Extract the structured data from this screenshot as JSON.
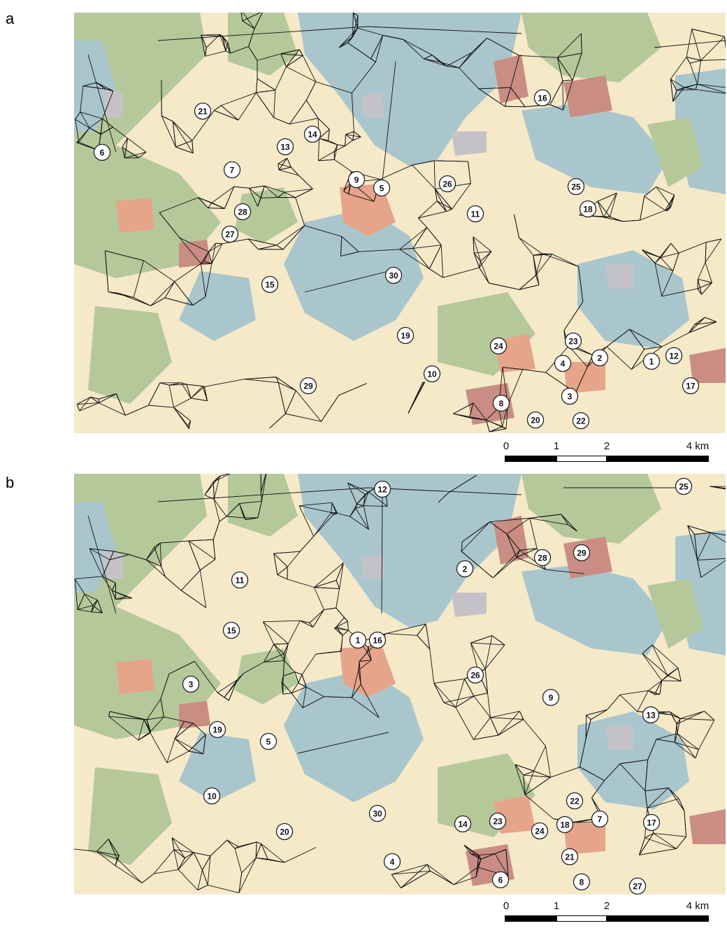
{
  "colors": {
    "background": "#f5e9c8",
    "water": "#a9c6cc",
    "forest": "#b5c89a",
    "urban_light": "#e6a48a",
    "urban_dark": "#c98d83",
    "grey": "#c4c2c8",
    "edge": "#111111"
  },
  "panels": [
    {
      "label": "a",
      "nodes": [
        {
          "id": "6"
        },
        {
          "id": "21"
        },
        {
          "id": "13"
        },
        {
          "id": "14"
        },
        {
          "id": "7"
        },
        {
          "id": "9"
        },
        {
          "id": "5"
        },
        {
          "id": "26"
        },
        {
          "id": "16"
        },
        {
          "id": "25"
        },
        {
          "id": "18"
        },
        {
          "id": "28"
        },
        {
          "id": "27"
        },
        {
          "id": "11"
        },
        {
          "id": "15"
        },
        {
          "id": "30"
        },
        {
          "id": "19"
        },
        {
          "id": "24"
        },
        {
          "id": "23"
        },
        {
          "id": "2"
        },
        {
          "id": "4"
        },
        {
          "id": "1"
        },
        {
          "id": "12"
        },
        {
          "id": "10"
        },
        {
          "id": "17"
        },
        {
          "id": "29"
        },
        {
          "id": "3"
        },
        {
          "id": "8"
        },
        {
          "id": "20"
        },
        {
          "id": "22"
        }
      ]
    },
    {
      "label": "b",
      "nodes": [
        {
          "id": "12"
        },
        {
          "id": "25"
        },
        {
          "id": "2"
        },
        {
          "id": "28"
        },
        {
          "id": "29"
        },
        {
          "id": "11"
        },
        {
          "id": "15"
        },
        {
          "id": "1"
        },
        {
          "id": "16"
        },
        {
          "id": "26"
        },
        {
          "id": "3"
        },
        {
          "id": "9"
        },
        {
          "id": "13"
        },
        {
          "id": "19"
        },
        {
          "id": "5"
        },
        {
          "id": "10"
        },
        {
          "id": "30"
        },
        {
          "id": "23"
        },
        {
          "id": "22"
        },
        {
          "id": "14"
        },
        {
          "id": "7"
        },
        {
          "id": "18"
        },
        {
          "id": "17"
        },
        {
          "id": "24"
        },
        {
          "id": "20"
        },
        {
          "id": "21"
        },
        {
          "id": "4"
        },
        {
          "id": "6"
        },
        {
          "id": "8"
        },
        {
          "id": "27"
        }
      ]
    }
  ],
  "scalebar": {
    "ticks": [
      "0",
      "1",
      "2",
      "4 km"
    ]
  }
}
